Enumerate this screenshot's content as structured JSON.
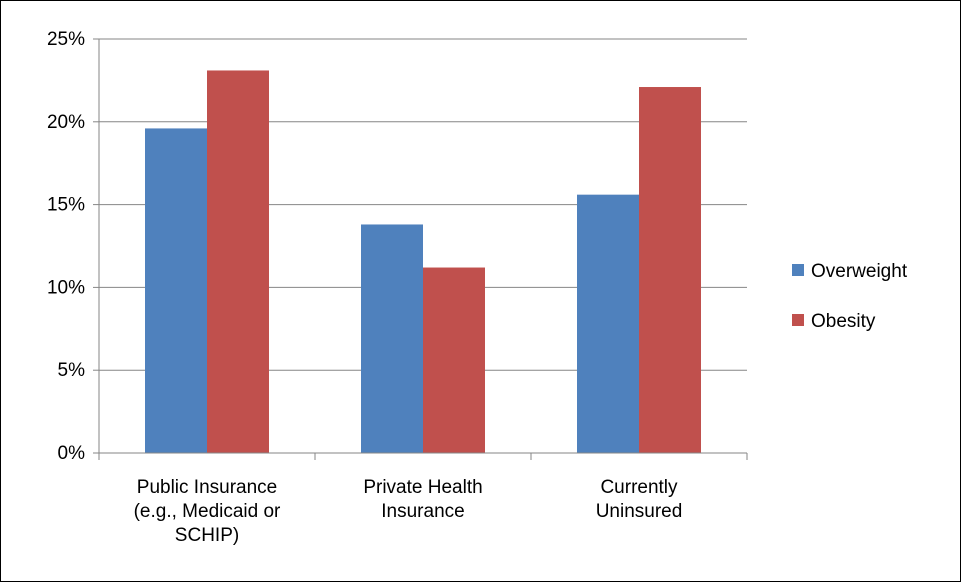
{
  "chart_data": {
    "type": "bar",
    "categories": [
      [
        "Public Insurance",
        "(e.g., Medicaid or",
        "SCHIP)"
      ],
      [
        "Private Health",
        "Insurance"
      ],
      [
        "Currently",
        "Uninsured"
      ]
    ],
    "series": [
      {
        "name": "Overweight",
        "color": "#4F81BD",
        "values": [
          19.6,
          13.8,
          15.6
        ]
      },
      {
        "name": "Obesity",
        "color": "#C0504D",
        "values": [
          23.1,
          11.2,
          22.1
        ]
      }
    ],
    "ylim": [
      0,
      25
    ],
    "yticks": [
      0,
      5,
      10,
      15,
      20,
      25
    ],
    "ytick_labels": [
      "0%",
      "5%",
      "10%",
      "15%",
      "20%",
      "25%"
    ],
    "grid": true,
    "legend_position": "right",
    "gridline_color": "#868686"
  }
}
